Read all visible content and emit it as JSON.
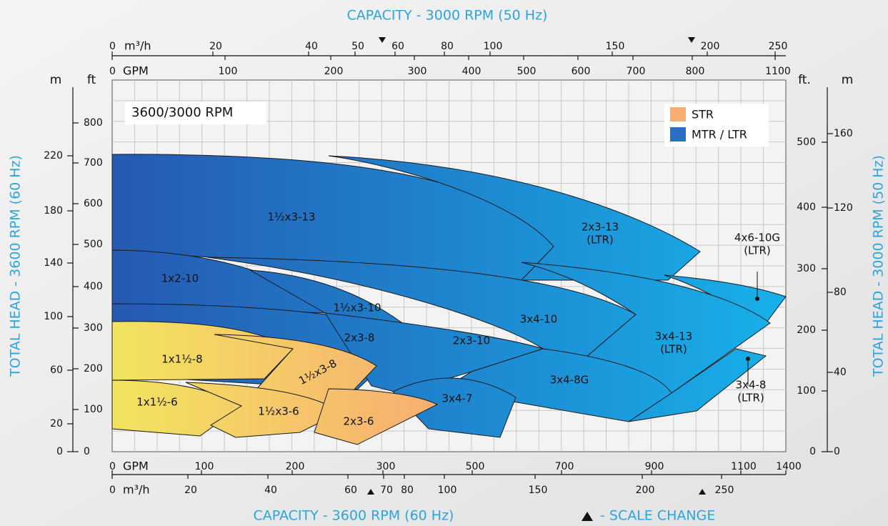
{
  "title_top": "CAPACITY - 3000 RPM (50 Hz)",
  "title_bottom": "CAPACITY - 3600 RPM (60 Hz)",
  "scale_change": "- SCALE CHANGE",
  "left_title": "TOTAL HEAD - 3600 RPM (60 Hz)",
  "right_title": "TOTAL HEAD - 3000 RPM (50 Hz)",
  "inset": "3600/3000 RPM",
  "axes": {
    "top_m3h": {
      "unit": "m³/h",
      "ticks": [
        0,
        20,
        40,
        50,
        60,
        80,
        100,
        150,
        200,
        250
      ]
    },
    "top_gpm": {
      "unit": "GPM",
      "ticks": [
        0,
        100,
        200,
        300,
        400,
        500,
        600,
        700,
        800,
        1100
      ]
    },
    "bottom_gpm": {
      "unit": "GPM",
      "ticks": [
        0,
        100,
        200,
        300,
        500,
        700,
        900,
        1100,
        1400
      ]
    },
    "bottom_m3h": {
      "unit": "m³/h",
      "ticks": [
        0,
        20,
        40,
        60,
        70,
        80,
        100,
        150,
        200,
        250
      ]
    },
    "left_m": {
      "unit": "m",
      "ticks": [
        0,
        20,
        60,
        100,
        140,
        180,
        220
      ]
    },
    "left_ft": {
      "unit": "ft",
      "ticks": [
        0,
        100,
        200,
        300,
        400,
        500,
        600,
        700,
        800
      ]
    },
    "right_ft": {
      "unit": "ft.",
      "ticks": [
        0,
        100,
        200,
        300,
        400,
        500
      ]
    },
    "right_m": {
      "unit": "m",
      "ticks": [
        0,
        40,
        80,
        120,
        160
      ]
    }
  },
  "legend": [
    {
      "name": "STR"
    },
    {
      "name": "MTR / LTR"
    }
  ],
  "regions": [
    {
      "label": "1½x3-13"
    },
    {
      "label": "2x3-13",
      "note": "(LTR)"
    },
    {
      "label": "4x6-10G",
      "note": "(LTR)"
    },
    {
      "label": "1x2-10"
    },
    {
      "label": "3x4-10"
    },
    {
      "label": "3x4-13",
      "note": "(LTR)"
    },
    {
      "label": "1½x3-10"
    },
    {
      "label": "2x3-8"
    },
    {
      "label": "2x3-10"
    },
    {
      "label": "3x4-8G"
    },
    {
      "label": "3x4-8",
      "note": "(LTR)"
    },
    {
      "label": "3x4-7"
    },
    {
      "label": "1x1½-8"
    },
    {
      "label": "1½x3-8"
    },
    {
      "label": "1x1½-6"
    },
    {
      "label": "1½x3-6"
    },
    {
      "label": "2x3-6"
    }
  ]
}
